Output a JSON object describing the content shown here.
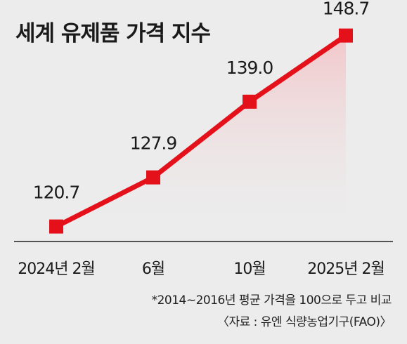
{
  "chart_data": {
    "type": "line",
    "title": "세계 유제품 가격 지수",
    "categories": [
      "2024년 2월",
      "6월",
      "10월",
      "2025년 2월"
    ],
    "series": [
      {
        "values": [
          120.7,
          127.9,
          139.0,
          148.7
        ]
      }
    ],
    "data_labels": [
      "120.7",
      "127.9",
      "139.0",
      "148.7"
    ],
    "xlabel": "",
    "ylabel": "",
    "ylim": [
      118.5,
      150.0
    ],
    "grid": false,
    "legend": "none",
    "colors": {
      "line": "#e4111b",
      "fill_top": "#f3c0c4",
      "baseline": "#222222"
    }
  },
  "notes": {
    "basis": "*2014~2016년 평균 가격을 100으로 두고 비교",
    "source": "〈자료 : 유엔 식량농업기구(FAO)〉"
  }
}
